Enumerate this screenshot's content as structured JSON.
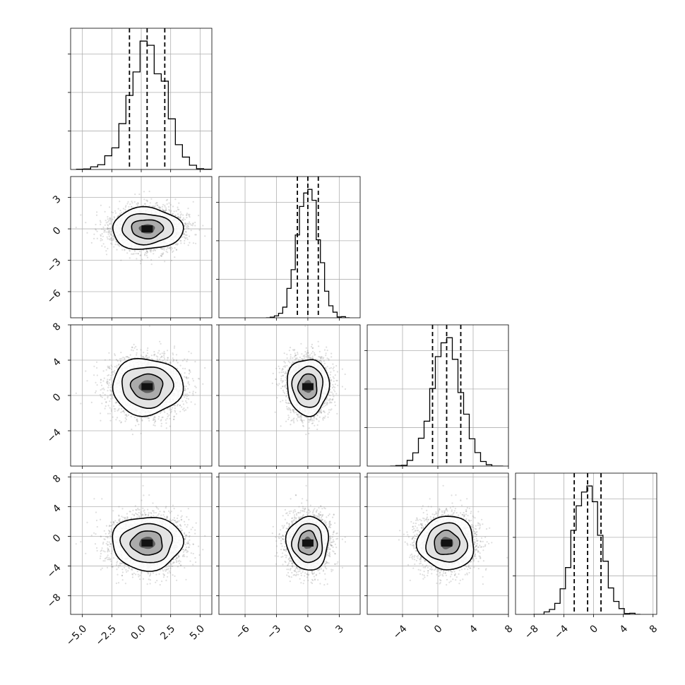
{
  "chart_data": {
    "type": "corner",
    "grid": true,
    "quantiles": [
      0.16,
      0.5,
      0.84
    ],
    "contour_levels": 3,
    "colors": {
      "line": "#000000",
      "scatter": "#8a8a8a",
      "grid": "#b0b0b0",
      "density_dark": "#000000",
      "density_light": "#ffffff"
    },
    "variables": [
      {
        "mean": 0.5,
        "std": 1.5,
        "range": [
          -6.0,
          6.0
        ],
        "ticks": [
          -5.0,
          -2.5,
          0.0,
          2.5,
          5.0
        ],
        "tick_labels": [
          "−5.0",
          "−2.5",
          "0.0",
          "2.5",
          "5.0"
        ],
        "quantile_values": [
          -1.0,
          0.5,
          2.0
        ]
      },
      {
        "mean": 0.0,
        "std": 1.0,
        "range": [
          -8.5,
          5.0
        ],
        "ticks": [
          -6,
          -3,
          0,
          3
        ],
        "tick_labels": [
          "−6",
          "−3",
          "0",
          "3"
        ],
        "quantile_values": [
          -1.0,
          0.0,
          1.0
        ]
      },
      {
        "mean": 1.0,
        "std": 1.6,
        "range": [
          -8.0,
          8.0
        ],
        "ticks": [
          -4,
          0,
          4,
          8
        ],
        "tick_labels": [
          "−4",
          "0",
          "4",
          "8"
        ],
        "quantile_values": [
          -0.6,
          1.0,
          2.6
        ]
      },
      {
        "mean": -0.9,
        "std": 1.8,
        "range": [
          -10.5,
          8.5
        ],
        "ticks": [
          -8,
          -4,
          0,
          4,
          8
        ],
        "tick_labels": [
          "−8",
          "−4",
          "0",
          "4",
          "8"
        ],
        "quantile_values": [
          -2.6,
          -0.8,
          1.0
        ]
      }
    ],
    "hist_peaks_relative": [
      1.0,
      1.0,
      1.0,
      1.0
    ],
    "samples_drawn": 3000
  }
}
